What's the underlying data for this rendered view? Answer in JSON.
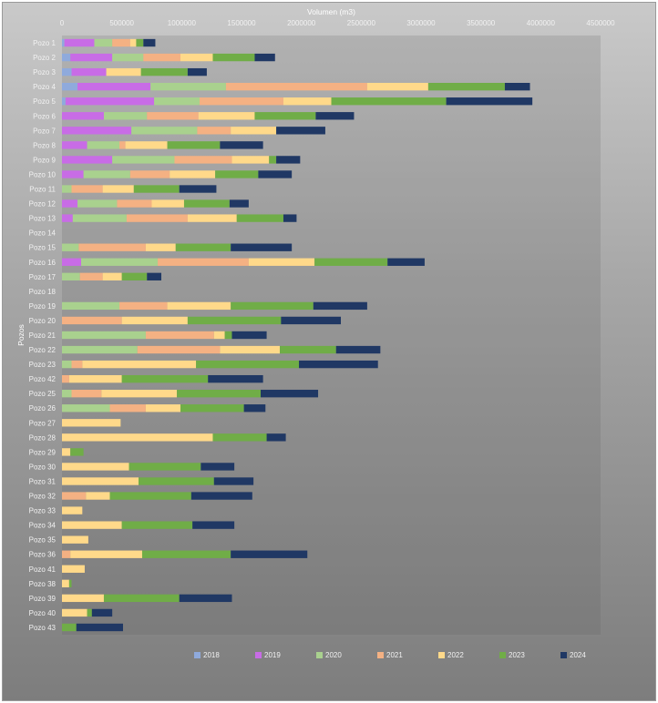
{
  "chart_data": {
    "type": "bar",
    "orientation": "horizontal",
    "stacked": true,
    "xlabel": "Volumen (m3)",
    "ylabel": "Pozos",
    "xlim": [
      0,
      4500000
    ],
    "xticks": [
      0,
      500000,
      1000000,
      1500000,
      2000000,
      2500000,
      3000000,
      3500000,
      4000000,
      4500000
    ],
    "xtick_labels": [
      "0",
      "500000",
      "1000000",
      "1500000",
      "2000000",
      "2500000",
      "3000000",
      "3500000",
      "4000000",
      "4500000"
    ],
    "x_axis_position": "top",
    "grid": false,
    "legend_position": "bottom",
    "categories": [
      "Pozo 1",
      "Pozo 2",
      "Pozo 3",
      "Pozo 4",
      "Pozo 5",
      "Pozo 6",
      "Pozo 7",
      "Pozo 8",
      "Pozo 9",
      "Pozo 10",
      "Pozo 11",
      "Pozo 12",
      "Pozo 13",
      "Pozo 14",
      "Pozo 15",
      "Pozo 16",
      "Pozo 17",
      "Pozo 18",
      "Pozo 19",
      "Pozo 20",
      "Pozo 21",
      "Pozo 22",
      "Pozo 23",
      "Pozo 42",
      "Pozo 25",
      "Pozo 26",
      "Pozo 27",
      "Pozo 28",
      "Pozo 29",
      "Pozo 30",
      "Pozo 31",
      "Pozo 32",
      "Pozo 33",
      "Pozo 34",
      "Pozo 35",
      "Pozo 36",
      "Pozo 41",
      "Pozo 38",
      "Pozo 39",
      "Pozo 40",
      "Pozo 43"
    ],
    "series": [
      {
        "name": "2018",
        "color": "#8faadc",
        "values": [
          20000,
          70000,
          80000,
          130000,
          30000,
          0,
          0,
          0,
          0,
          0,
          0,
          0,
          0,
          0,
          0,
          0,
          0,
          0,
          0,
          0,
          0,
          0,
          0,
          0,
          0,
          0,
          0,
          0,
          0,
          0,
          0,
          0,
          0,
          0,
          0,
          0,
          0,
          0,
          0,
          0,
          0
        ]
      },
      {
        "name": "2019",
        "color": "#c86ce6",
        "values": [
          250000,
          350000,
          290000,
          610000,
          740000,
          350000,
          580000,
          210000,
          420000,
          180000,
          0,
          130000,
          90000,
          0,
          0,
          160000,
          0,
          0,
          0,
          0,
          0,
          0,
          0,
          0,
          0,
          0,
          0,
          0,
          0,
          0,
          0,
          0,
          0,
          0,
          0,
          0,
          0,
          0,
          0,
          0,
          0
        ]
      },
      {
        "name": "2020",
        "color": "#a9d18e",
        "values": [
          150000,
          260000,
          0,
          630000,
          380000,
          360000,
          550000,
          270000,
          520000,
          390000,
          80000,
          330000,
          450000,
          0,
          140000,
          640000,
          150000,
          0,
          480000,
          0,
          700000,
          630000,
          80000,
          0,
          80000,
          400000,
          0,
          0,
          0,
          0,
          0,
          0,
          0,
          0,
          0,
          0,
          0,
          0,
          0,
          0,
          0
        ]
      },
      {
        "name": "2021",
        "color": "#f4b183",
        "values": [
          150000,
          310000,
          0,
          1180000,
          700000,
          430000,
          280000,
          50000,
          480000,
          330000,
          260000,
          290000,
          510000,
          0,
          560000,
          760000,
          190000,
          0,
          400000,
          500000,
          570000,
          690000,
          90000,
          60000,
          250000,
          300000,
          0,
          0,
          0,
          0,
          0,
          200000,
          0,
          0,
          0,
          70000,
          0,
          0,
          0,
          0,
          0
        ]
      },
      {
        "name": "2022",
        "color": "#ffd98a",
        "values": [
          50000,
          270000,
          290000,
          510000,
          400000,
          470000,
          380000,
          350000,
          310000,
          380000,
          260000,
          270000,
          410000,
          0,
          250000,
          550000,
          160000,
          0,
          530000,
          550000,
          90000,
          500000,
          950000,
          440000,
          630000,
          290000,
          490000,
          1260000,
          70000,
          560000,
          640000,
          200000,
          170000,
          500000,
          220000,
          600000,
          190000,
          60000,
          350000,
          210000,
          0
        ]
      },
      {
        "name": "2023",
        "color": "#70ad47",
        "values": [
          60000,
          350000,
          390000,
          640000,
          960000,
          510000,
          0,
          440000,
          60000,
          360000,
          380000,
          380000,
          390000,
          0,
          460000,
          610000,
          210000,
          0,
          690000,
          780000,
          60000,
          470000,
          860000,
          720000,
          700000,
          530000,
          0,
          450000,
          110000,
          600000,
          630000,
          680000,
          0,
          590000,
          0,
          740000,
          0,
          20000,
          630000,
          40000,
          120000
        ]
      },
      {
        "name": "2024",
        "color": "#203864",
        "values": [
          100000,
          170000,
          160000,
          210000,
          720000,
          320000,
          410000,
          360000,
          200000,
          280000,
          310000,
          160000,
          110000,
          0,
          510000,
          310000,
          120000,
          0,
          450000,
          500000,
          290000,
          370000,
          660000,
          460000,
          480000,
          180000,
          0,
          160000,
          0,
          280000,
          330000,
          510000,
          0,
          350000,
          0,
          640000,
          0,
          0,
          440000,
          170000,
          390000
        ]
      }
    ]
  }
}
